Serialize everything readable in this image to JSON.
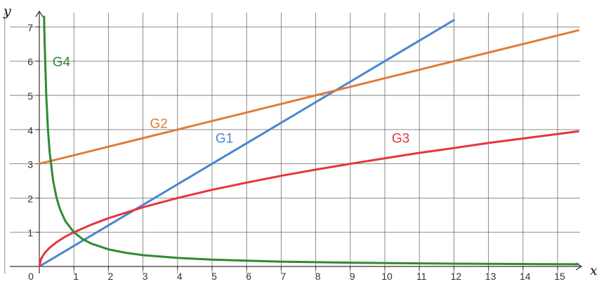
{
  "chart_data": {
    "type": "line",
    "xlabel": "x",
    "ylabel": "y",
    "xlim": [
      -0.85,
      15.6
    ],
    "ylim": [
      -0.2,
      7.3
    ],
    "x_ticks": [
      "0",
      "1",
      "2",
      "3",
      "4",
      "5",
      "6",
      "7",
      "8",
      "9",
      "10",
      "11",
      "12",
      "13",
      "14",
      "15"
    ],
    "y_ticks": [
      "1",
      "2",
      "3",
      "4",
      "5",
      "6",
      "7"
    ],
    "grid": true,
    "series": [
      {
        "name": "G1",
        "color": "#4a86d0",
        "x": [
          0,
          1,
          2,
          3,
          4,
          5,
          6,
          7,
          8,
          9,
          10,
          11,
          12
        ],
        "y": [
          0,
          0.6,
          1.2,
          1.8,
          2.4,
          3.0,
          3.6,
          4.2,
          4.8,
          5.4,
          6.0,
          6.6,
          7.2
        ]
      },
      {
        "name": "G2",
        "color": "#e07b39",
        "x": [
          0,
          1,
          2,
          3,
          4,
          5,
          6,
          7,
          8,
          9,
          10,
          11,
          12,
          13,
          14,
          15,
          15.6
        ],
        "y": [
          3.0,
          3.25,
          3.5,
          3.75,
          4.0,
          4.25,
          4.5,
          4.75,
          5.0,
          5.25,
          5.5,
          5.75,
          6.0,
          6.25,
          6.5,
          6.75,
          6.9
        ]
      },
      {
        "name": "G3",
        "color": "#e8343c",
        "x": [
          0,
          0.05,
          0.15,
          0.3,
          0.5,
          0.75,
          1,
          1.5,
          2,
          3,
          4,
          5,
          6,
          7,
          8,
          9,
          10,
          11,
          12,
          13,
          14,
          15,
          15.6
        ],
        "y": [
          0,
          0.22,
          0.39,
          0.55,
          0.71,
          0.87,
          1.0,
          1.22,
          1.41,
          1.73,
          2.0,
          2.24,
          2.45,
          2.65,
          2.83,
          3.0,
          3.16,
          3.32,
          3.46,
          3.61,
          3.74,
          3.87,
          3.95
        ]
      },
      {
        "name": "G4",
        "color": "#2f8a32",
        "x": [
          0.137,
          0.15,
          0.2,
          0.25,
          0.3,
          0.4,
          0.5,
          0.6,
          0.75,
          1,
          1.25,
          1.5,
          2,
          2.5,
          3,
          4,
          5,
          6,
          7,
          8,
          9,
          10,
          11,
          12,
          13,
          14,
          15,
          15.6
        ],
        "y": [
          7.3,
          6.67,
          5.0,
          4.0,
          3.33,
          2.5,
          2.0,
          1.67,
          1.33,
          1.0,
          0.8,
          0.67,
          0.5,
          0.4,
          0.33,
          0.25,
          0.2,
          0.17,
          0.14,
          0.125,
          0.11,
          0.1,
          0.09,
          0.083,
          0.077,
          0.071,
          0.067,
          0.064
        ]
      }
    ]
  }
}
